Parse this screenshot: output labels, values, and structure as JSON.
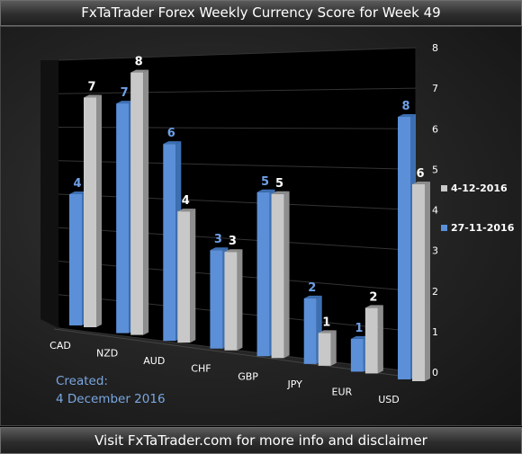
{
  "title": "FxTaTrader Forex Weekly Currency Score for Week 49",
  "footer": "Visit FxTaTrader.com for more info and disclaimer",
  "created_label": "Created:",
  "created_date": "4 December 2016",
  "watermark": "FxTaTrader",
  "colors": {
    "current": "#c8c8c8",
    "previous": "#5b8fd8",
    "background": "#000000"
  },
  "chart_data": {
    "type": "bar",
    "categories": [
      "CAD",
      "NZD",
      "AUD",
      "CHF",
      "GBP",
      "JPY",
      "EUR",
      "USD"
    ],
    "series": [
      {
        "name": "4-12-2016",
        "values": [
          7,
          8,
          4,
          3,
          5,
          1,
          2,
          6
        ]
      },
      {
        "name": "27-11-2016",
        "values": [
          4,
          7,
          6,
          3,
          5,
          2,
          1,
          8
        ]
      }
    ],
    "ylim": [
      0,
      8
    ],
    "yticks": [
      0,
      1,
      2,
      3,
      4,
      5,
      6,
      7,
      8
    ],
    "legend_position": "right",
    "grid": true
  }
}
